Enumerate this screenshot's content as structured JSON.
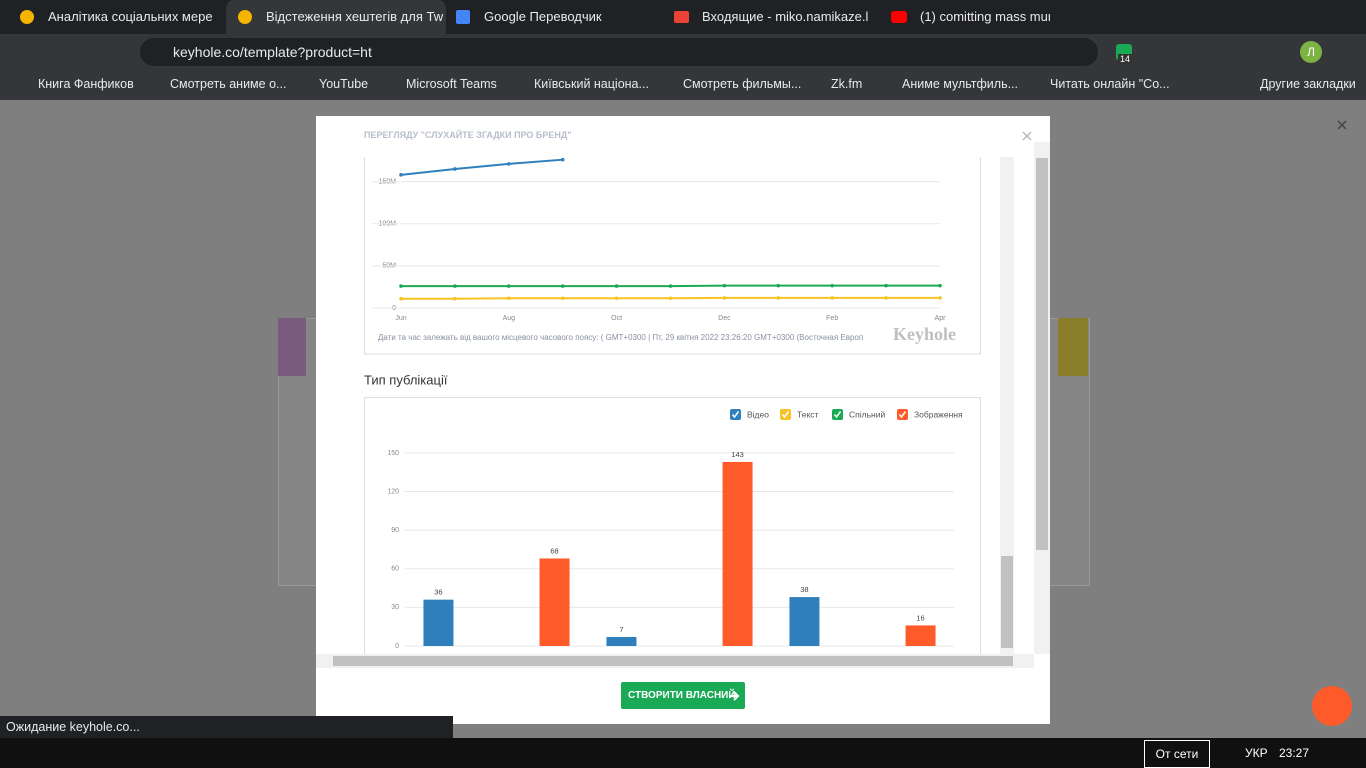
{
  "browser": {
    "tabs": [
      "Аналітика соціальних мере",
      "Відстеження хештегів для Tw",
      "Google Переводчик",
      "Входящие - miko.namikaze.l",
      "(1) comitting mass murd"
    ],
    "url": "keyhole.co/template?product=ht",
    "extension_badge": "14",
    "profile": "Л",
    "bookmarks": [
      "Книга Фанфиков",
      "Смотреть аниме о...",
      "YouTube",
      "Microsoft Teams",
      "Київський націона...",
      "Смотреть фильмы...",
      "Zk.fm",
      "Аниме мультфиль...",
      "Читать онлайн \"Со..."
    ],
    "other_bookmarks": "Другие закладки",
    "status": "Ожидание keyhole.co..."
  },
  "modal": {
    "header": "ПЕРЕГЛЯДУ \"СЛУХАЙТЕ ЗГАДКИ ПРО БРЕНД\"",
    "timezone_note": "Дати та час залежать від вашого місцевого часового поясу: ( GMT+0300 | Пт, 29 квітня 2022 23:26:20 GMT+0300 (Восточная Европ",
    "watermark": "Keyhole",
    "section_title": "Тип публікації",
    "button": "СТВОРИТИ ВЛАСНИЙ"
  },
  "chart_data": [
    {
      "type": "line",
      "categories": [
        "Jun",
        null,
        "Aug",
        null,
        "Oct",
        null,
        "Dec",
        null,
        "Feb",
        null,
        "Apr"
      ],
      "series": [
        {
          "name": "blue",
          "color": "#2e7fbb",
          "values": [
            158000000,
            165000000,
            171000000,
            176000000,
            null,
            null,
            null,
            null,
            null,
            null,
            null
          ]
        },
        {
          "name": "green",
          "color": "#1aaa55",
          "values": [
            26000000,
            26000000,
            26000000,
            26000000,
            26000000,
            26000000,
            26500000,
            26500000,
            26500000,
            26500000,
            26500000
          ]
        },
        {
          "name": "yellow",
          "color": "#f7c325",
          "values": [
            11000000,
            11000000,
            11500000,
            11500000,
            11500000,
            11500000,
            12000000,
            12000000,
            12000000,
            12000000,
            12000000
          ]
        }
      ],
      "ylim": [
        0,
        178000000
      ],
      "yticks": [
        0,
        {
          "value": 50000000,
          "label": "50M"
        },
        {
          "value": 100000000,
          "label": "100M"
        },
        {
          "value": 150000000,
          "label": "150M"
        }
      ],
      "grid": true
    },
    {
      "type": "bar",
      "categories": [
        null,
        null,
        null
      ],
      "series": [
        {
          "name": "Відео",
          "color": "#2e7fbb",
          "values": [
            36,
            7,
            38
          ]
        },
        {
          "name": "Текст",
          "color": "#f7c325",
          "values": [
            0,
            0,
            0
          ]
        },
        {
          "name": "Спільний",
          "color": "#1aaa55",
          "values": [
            0,
            0,
            0
          ]
        },
        {
          "name": "Зображення",
          "color": "#ff5a2a",
          "values": [
            68,
            143,
            16
          ]
        }
      ],
      "ylim": [
        0,
        155
      ],
      "yticks": [
        0,
        30,
        60,
        90,
        120,
        150
      ],
      "grid": true,
      "legend": "top-right"
    }
  ],
  "taskbar": {
    "network": "От сети",
    "language": "УКР",
    "time": "23:27"
  }
}
